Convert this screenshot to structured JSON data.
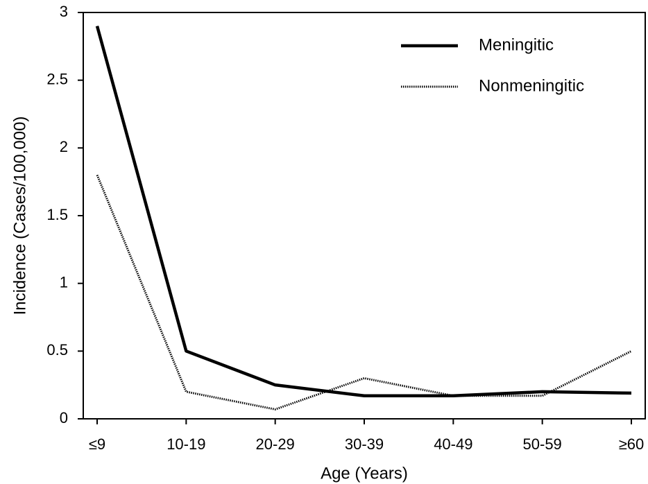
{
  "chart_data": {
    "type": "line",
    "x_label": "Age (Years)",
    "y_label": "Incidence (Cases/100,000)",
    "categories": [
      "≤9",
      "10-19",
      "20-29",
      "30-39",
      "40-49",
      "50-59",
      "≥60"
    ],
    "series": [
      {
        "name": "Meningitic",
        "color": "#000000",
        "style": "solid",
        "values": [
          2.9,
          0.5,
          0.25,
          0.17,
          0.17,
          0.2,
          0.19
        ]
      },
      {
        "name": "Nonmeningitic",
        "color": "#000000",
        "style": "dotted",
        "values": [
          1.8,
          0.2,
          0.07,
          0.3,
          0.17,
          0.17,
          0.5
        ]
      }
    ],
    "ylim": [
      0,
      3
    ],
    "yticks": [
      0,
      0.5,
      1,
      1.5,
      2,
      2.5,
      3
    ],
    "grid": false,
    "legend": "upper right"
  }
}
